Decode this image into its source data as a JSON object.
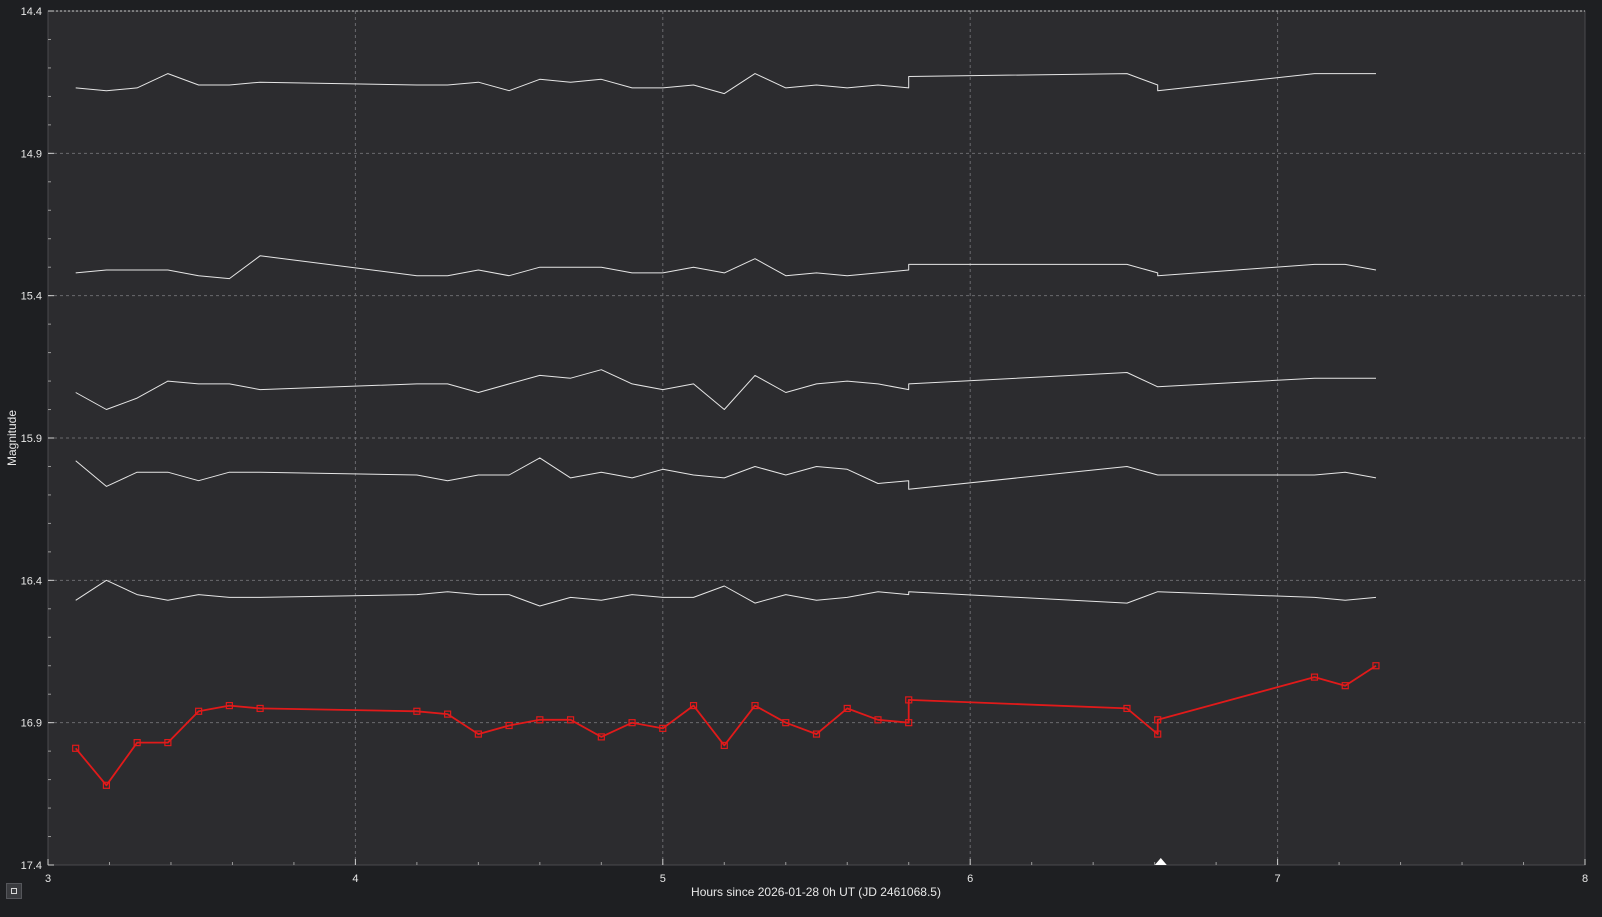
{
  "chart_data": {
    "type": "line",
    "title": "",
    "xlabel": "Hours since 2026-01-28 0h UT (JD 2461068.5)",
    "ylabel": "Magnitude",
    "xlim": [
      3,
      8
    ],
    "ylim": [
      17.4,
      14.4
    ],
    "y_inverted": true,
    "x_ticks": [
      3,
      4,
      5,
      6,
      7,
      8
    ],
    "y_ticks": [
      14.4,
      14.9,
      15.4,
      15.9,
      16.4,
      16.9,
      17.4
    ],
    "grid": true,
    "legend": "none",
    "marker_x": 6.62,
    "series": [
      {
        "color": "#e11a1a",
        "markers": "square",
        "x": [
          3.09,
          3.19,
          3.29,
          3.39,
          3.49,
          3.59,
          3.69,
          4.2,
          4.3,
          4.4,
          4.5,
          4.6,
          4.7,
          4.8,
          4.9,
          5.0,
          5.1,
          5.2,
          5.3,
          5.4,
          5.5,
          5.6,
          5.7,
          5.8,
          5.8,
          6.51,
          6.61,
          6.61,
          7.12,
          7.22,
          7.32
        ],
        "y": [
          16.99,
          17.12,
          16.97,
          16.97,
          16.86,
          16.84,
          16.85,
          16.86,
          16.87,
          16.94,
          16.91,
          16.89,
          16.89,
          16.95,
          16.9,
          16.92,
          16.84,
          16.98,
          16.84,
          16.9,
          16.94,
          16.85,
          16.89,
          16.9,
          16.82,
          16.85,
          16.94,
          16.89,
          16.74,
          16.77,
          16.7
        ]
      },
      {
        "color": "#e6e6e6",
        "x": [
          3.09,
          3.19,
          3.29,
          3.39,
          3.49,
          3.59,
          3.69,
          4.2,
          4.3,
          4.4,
          4.5,
          4.6,
          4.7,
          4.8,
          4.9,
          5.0,
          5.1,
          5.2,
          5.3,
          5.4,
          5.5,
          5.6,
          5.7,
          5.8,
          5.8,
          6.51,
          6.61,
          6.61,
          7.12,
          7.22,
          7.32
        ],
        "y": [
          16.47,
          16.4,
          16.45,
          16.47,
          16.45,
          16.46,
          16.46,
          16.45,
          16.44,
          16.45,
          16.45,
          16.49,
          16.46,
          16.47,
          16.45,
          16.46,
          16.46,
          16.42,
          16.48,
          16.45,
          16.47,
          16.46,
          16.44,
          16.45,
          16.44,
          16.48,
          16.44,
          16.44,
          16.46,
          16.47,
          16.46
        ]
      },
      {
        "color": "#e6e6e6",
        "x": [
          3.09,
          3.19,
          3.29,
          3.39,
          3.49,
          3.59,
          3.69,
          4.2,
          4.3,
          4.4,
          4.5,
          4.6,
          4.7,
          4.8,
          4.9,
          5.0,
          5.1,
          5.2,
          5.3,
          5.4,
          5.5,
          5.6,
          5.7,
          5.8,
          5.8,
          6.51,
          6.61,
          6.61,
          7.12,
          7.22,
          7.32
        ],
        "y": [
          15.98,
          16.07,
          16.02,
          16.02,
          16.05,
          16.02,
          16.02,
          16.03,
          16.05,
          16.03,
          16.03,
          15.97,
          16.04,
          16.02,
          16.04,
          16.01,
          16.03,
          16.04,
          16.0,
          16.03,
          16.0,
          16.01,
          16.06,
          16.05,
          16.08,
          16.0,
          16.03,
          16.03,
          16.03,
          16.02,
          16.04
        ]
      },
      {
        "color": "#e6e6e6",
        "x": [
          3.09,
          3.19,
          3.29,
          3.39,
          3.49,
          3.59,
          3.69,
          4.2,
          4.3,
          4.4,
          4.5,
          4.6,
          4.7,
          4.8,
          4.9,
          5.0,
          5.1,
          5.2,
          5.3,
          5.4,
          5.5,
          5.6,
          5.7,
          5.8,
          5.8,
          6.51,
          6.61,
          6.61,
          7.12,
          7.22,
          7.32
        ],
        "y": [
          15.74,
          15.8,
          15.76,
          15.7,
          15.71,
          15.71,
          15.73,
          15.71,
          15.71,
          15.74,
          15.71,
          15.68,
          15.69,
          15.66,
          15.71,
          15.73,
          15.71,
          15.8,
          15.68,
          15.74,
          15.71,
          15.7,
          15.71,
          15.73,
          15.71,
          15.67,
          15.72,
          15.72,
          15.69,
          15.69,
          15.69
        ]
      },
      {
        "color": "#e6e6e6",
        "x": [
          3.09,
          3.19,
          3.29,
          3.39,
          3.49,
          3.59,
          3.69,
          4.2,
          4.3,
          4.4,
          4.5,
          4.6,
          4.7,
          4.8,
          4.9,
          5.0,
          5.1,
          5.2,
          5.3,
          5.4,
          5.5,
          5.6,
          5.7,
          5.8,
          5.8,
          6.51,
          6.61,
          6.61,
          7.12,
          7.22,
          7.32
        ],
        "y": [
          15.32,
          15.31,
          15.31,
          15.31,
          15.33,
          15.34,
          15.26,
          15.33,
          15.33,
          15.31,
          15.33,
          15.3,
          15.3,
          15.3,
          15.32,
          15.32,
          15.3,
          15.32,
          15.27,
          15.33,
          15.32,
          15.33,
          15.32,
          15.31,
          15.29,
          15.29,
          15.32,
          15.33,
          15.29,
          15.29,
          15.31
        ]
      },
      {
        "color": "#e6e6e6",
        "x": [
          3.09,
          3.19,
          3.29,
          3.39,
          3.49,
          3.59,
          3.69,
          4.2,
          4.3,
          4.4,
          4.5,
          4.6,
          4.7,
          4.8,
          4.9,
          5.0,
          5.1,
          5.2,
          5.3,
          5.4,
          5.5,
          5.6,
          5.7,
          5.8,
          5.8,
          6.51,
          6.61,
          6.61,
          7.12,
          7.22,
          7.32
        ],
        "y": [
          14.67,
          14.68,
          14.67,
          14.62,
          14.66,
          14.66,
          14.65,
          14.66,
          14.66,
          14.65,
          14.68,
          14.64,
          14.65,
          14.64,
          14.67,
          14.67,
          14.66,
          14.69,
          14.62,
          14.67,
          14.66,
          14.67,
          14.66,
          14.67,
          14.63,
          14.62,
          14.66,
          14.68,
          14.62,
          14.62,
          14.62
        ]
      }
    ]
  },
  "colors": {
    "frame_background": "#1e1f22",
    "plot_background": "#2c2c2f",
    "grid": "#6a6a6e",
    "text": "#e8e8e8",
    "target_series": "#e11a1a",
    "comparison_series": "#e6e6e6"
  }
}
